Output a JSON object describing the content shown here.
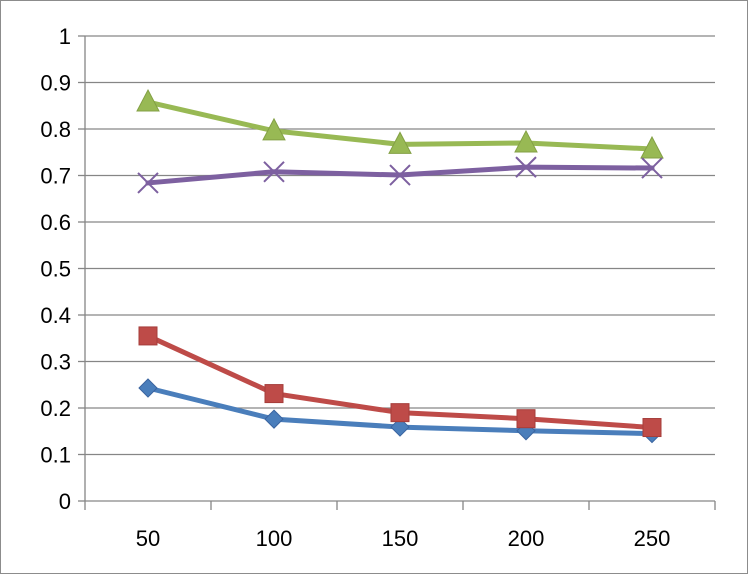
{
  "chart_data": {
    "type": "line",
    "categories": [
      "50",
      "100",
      "150",
      "200",
      "250"
    ],
    "series": [
      {
        "color": "#4a7ebb",
        "marker": "diamond",
        "values": [
          0.243,
          0.176,
          0.159,
          0.151,
          0.145
        ]
      },
      {
        "color": "#be4b48",
        "marker": "square",
        "values": [
          0.355,
          0.231,
          0.19,
          0.177,
          0.158
        ]
      },
      {
        "color": "#98b954",
        "marker": "triangle",
        "values": [
          0.858,
          0.796,
          0.767,
          0.77,
          0.757
        ]
      },
      {
        "color": "#7d60a0",
        "marker": "x",
        "values": [
          0.684,
          0.708,
          0.701,
          0.718,
          0.716
        ]
      }
    ],
    "y_ticks": [
      "0",
      "0.1",
      "0.2",
      "0.3",
      "0.4",
      "0.5",
      "0.6",
      "0.7",
      "0.8",
      "0.9",
      "1"
    ],
    "ylim": [
      0,
      1
    ],
    "grid": true,
    "legend": "none",
    "title": "",
    "xlabel": "",
    "ylabel": ""
  },
  "colors": {
    "gridline": "#868686",
    "axis": "#868686",
    "frame": "#8c8c8c"
  }
}
